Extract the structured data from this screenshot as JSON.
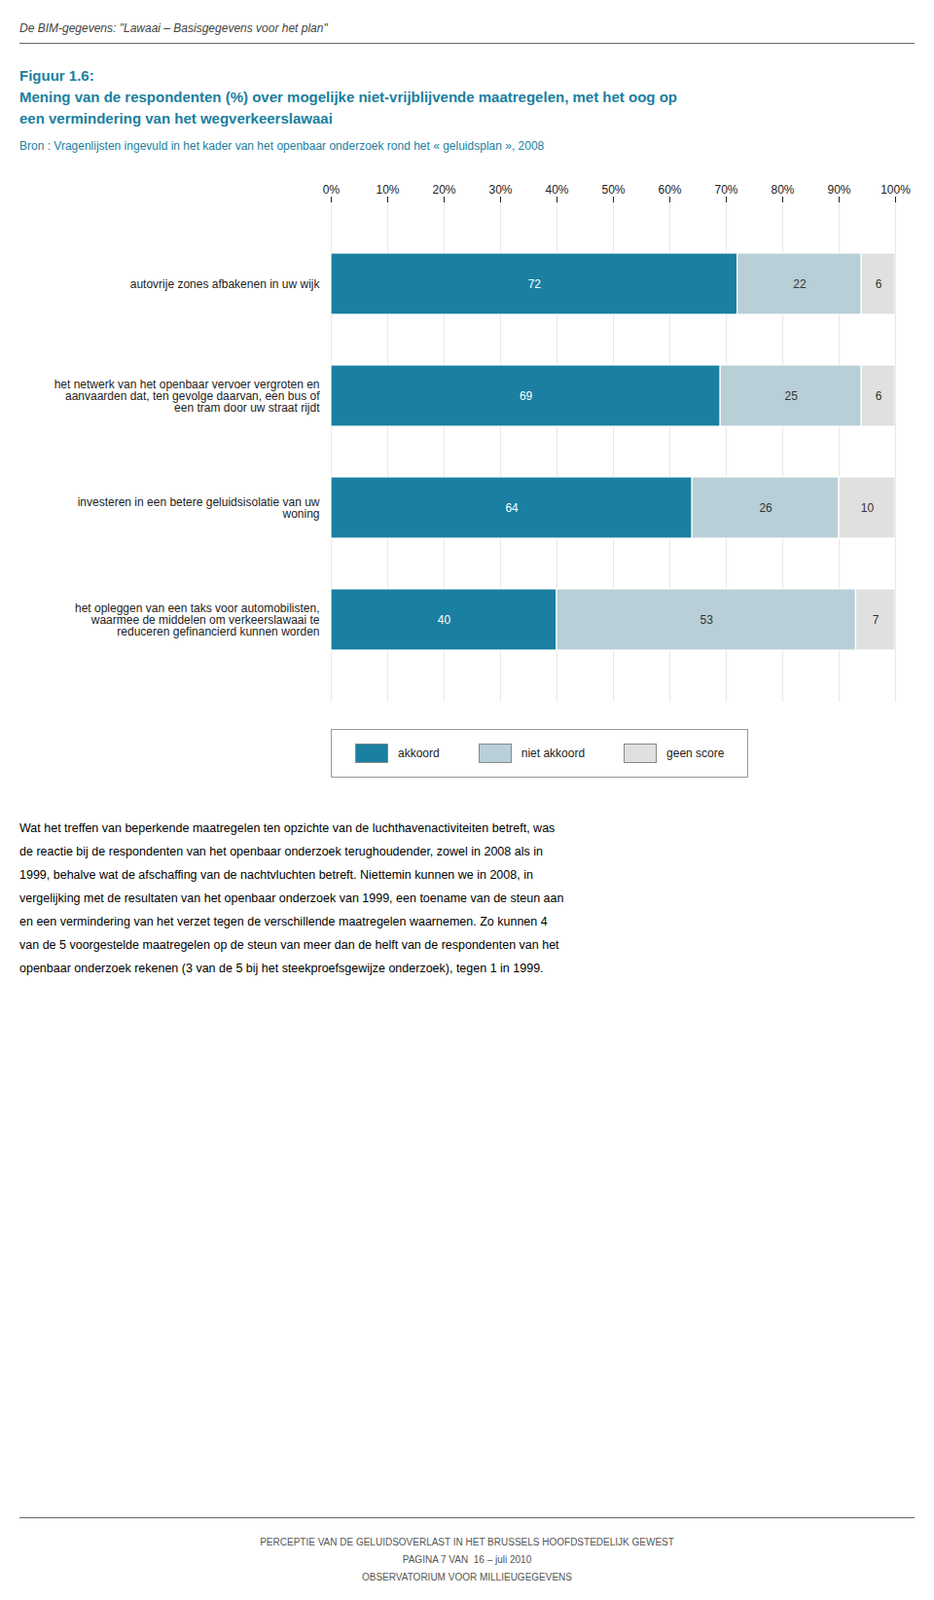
{
  "chart_data": {
    "type": "bar",
    "orientation": "horizontal",
    "stacked": true,
    "title": "Figuur 1.6:\nMening van de respondenten (%) over mogelijke niet-vrijblijvende maatregelen, met het oog op\neen vermindering van het wegverkeerslawaai",
    "subtitle": "Bron : Vragenlijsten ingevuld in het kader van het openbaar onderzoek rond het « geluidsplan », 2008",
    "categories": [
      "autovrije zones afbakenen in uw wijk",
      "het netwerk van het openbaar vervoer vergroten en\naanvaarden dat, ten gevolge daarvan, een bus of\neen tram door uw straat rijdt",
      "investeren in een betere geluidsisolatie van uw\nwoning",
      "het opleggen van een taks voor automobilisten,\nwaarmee de middelen om verkeerslawaai te\nreduceren gefinancierd kunnen worden"
    ],
    "series": [
      {
        "name": "akkoord",
        "color": "#1a7fa0",
        "values": [
          72,
          69,
          64,
          40
        ]
      },
      {
        "name": "niet akkoord",
        "color": "#b8cfd8",
        "values": [
          22,
          25,
          26,
          53
        ]
      },
      {
        "name": "geen score",
        "color": "#e0e0e0",
        "values": [
          6,
          6,
          10,
          7
        ]
      }
    ],
    "xlim": [
      0,
      100
    ],
    "xticks": [
      {
        "value": 0,
        "label": "0%"
      },
      {
        "value": 10,
        "label": "10%"
      },
      {
        "value": 20,
        "label": "20%"
      },
      {
        "value": 30,
        "label": "30%"
      },
      {
        "value": 40,
        "label": "40%"
      },
      {
        "value": 50,
        "label": "50%"
      },
      {
        "value": 60,
        "label": "60%"
      },
      {
        "value": 70,
        "label": "70%"
      },
      {
        "value": 80,
        "label": "80%"
      },
      {
        "value": 90,
        "label": "90%"
      },
      {
        "value": 100,
        "label": "100%"
      }
    ],
    "grid": true,
    "data_labels": true,
    "legend": "bottom",
    "annotations": {
      "header": "De BIM-gegevens: \"Lawaai – Basisgegevens voor het plan\"",
      "body": [
        "Wat het treffen van beperkende maatregelen ten opzichte van de luchthavenactiviteiten betreft, was",
        "de reactie bij de respondenten van het openbaar onderzoek terughoudender, zowel in 2008 als in",
        "1999, behalve wat de afschaffing van de nachtvluchten betreft. Niettemin kunnen we in 2008, in",
        "vergelijking met de resultaten van het openbaar onderzoek van 1999, een toename van de steun aan",
        "en een vermindering van het verzet tegen de verschillende maatregelen waarnemen. Zo kunnen 4",
        "van de 5 voorgestelde maatregelen op de steun van meer dan de helft van de respondenten van het",
        "openbaar onderzoek rekenen (3 van de 5 bij het steekproefsgewijze onderzoek), tegen 1 in 1999."
      ],
      "footer": [
        "PERCEPTIE VAN DE GELUIDSOVERLAST IN HET BRUSSELS HOOFDSTEDELIJK GEWEST",
        "PAGINA 7 VAN  16 – juli 2010",
        "OBSERVATORIUM VOOR MILLIEUGEGEVENS"
      ]
    }
  }
}
